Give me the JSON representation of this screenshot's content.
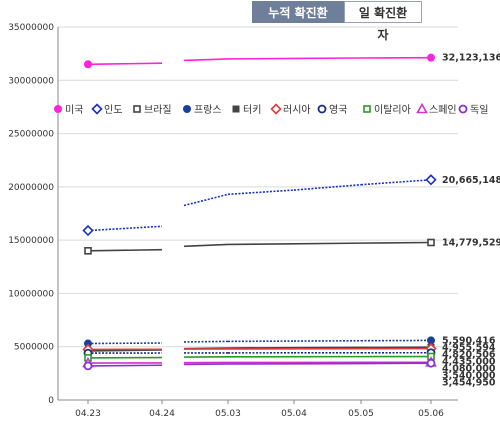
{
  "tabs": [
    {
      "label": "누적 확진환자",
      "active": true
    },
    {
      "label": "일 확진환자",
      "active": false
    }
  ],
  "chart_data": {
    "type": "line",
    "categories": [
      "04.23",
      "04.24",
      "05.03",
      "05.04",
      "05.05",
      "05.06"
    ],
    "ylim": [
      0,
      35000000
    ],
    "yticks": [
      0,
      5000000,
      10000000,
      15000000,
      20000000,
      25000000,
      30000000,
      35000000
    ],
    "ytick_labels": [
      "0",
      "5000000",
      "10000000",
      "15000000",
      "20000000",
      "25000000",
      "30000000",
      "35000000"
    ],
    "grid": true,
    "legend_position": "inside-top",
    "series": [
      {
        "name": "미국",
        "color": "#ff22dd",
        "marker": "circle-filled",
        "style": "solid",
        "values": [
          31500000,
          31600000,
          32000000,
          32050000,
          32090000,
          32123136
        ],
        "end_label": "32,123,136"
      },
      {
        "name": "인도",
        "color": "#1a2fc4",
        "marker": "diamond-open",
        "style": "dotted",
        "values": [
          15900000,
          16300000,
          19300000,
          19700000,
          20200000,
          20665148
        ],
        "end_label": "20,665,148"
      },
      {
        "name": "브라질",
        "color": "#444444",
        "marker": "square-open",
        "style": "solid",
        "values": [
          14000000,
          14100000,
          14600000,
          14660000,
          14720000,
          14779529
        ],
        "end_label": "14,779,529"
      },
      {
        "name": "프랑스",
        "color": "#1a3f9e",
        "marker": "circle-filled",
        "style": "dotted",
        "values": [
          5300000,
          5350000,
          5500000,
          5530000,
          5560000,
          5590416
        ],
        "end_label": "5,590,416"
      },
      {
        "name": "터키",
        "color": "#444444",
        "marker": "square-filled",
        "style": "solid",
        "values": [
          4600000,
          4700000,
          4880000,
          4910000,
          4930000,
          4955594
        ],
        "end_label": "4,955,594"
      },
      {
        "name": "러시아",
        "color": "#e03c3c",
        "marker": "diamond-open",
        "style": "solid",
        "values": [
          4750000,
          4760000,
          4790000,
          4800000,
          4810000,
          4820506
        ],
        "end_label": "4,820,506"
      },
      {
        "name": "영국",
        "color": "#1a2a88",
        "marker": "circle-open",
        "style": "dotted",
        "values": [
          4400000,
          4410000,
          4420000,
          4425000,
          4430000,
          4435000
        ],
        "end_label": "4,435,000"
      },
      {
        "name": "이탈리아",
        "color": "#2a9a2a",
        "marker": "square-open",
        "style": "solid",
        "values": [
          3950000,
          3980000,
          4050000,
          4060000,
          4070000,
          4080000
        ],
        "end_label": "4,080,000"
      },
      {
        "name": "스페인",
        "color": "#cc33cc",
        "marker": "triangle-open",
        "style": "solid",
        "values": [
          3470000,
          3480000,
          3520000,
          3530000,
          3535000,
          3540000
        ],
        "end_label": "3,540,000"
      },
      {
        "name": "독일",
        "color": "#8833cc",
        "marker": "circle-open",
        "style": "solid",
        "values": [
          3200000,
          3260000,
          3380000,
          3400000,
          3420000,
          3454950
        ],
        "end_label": "3,454,950"
      }
    ]
  }
}
